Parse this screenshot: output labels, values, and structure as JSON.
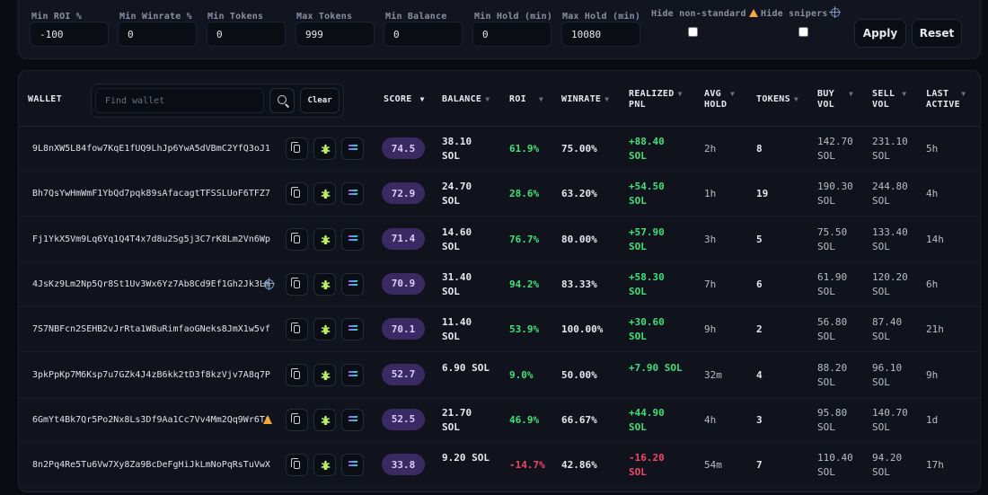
{
  "filters": {
    "min_roi": {
      "label": "Min ROI %",
      "value": "-100"
    },
    "min_winrate": {
      "label": "Min Winrate %",
      "value": "0"
    },
    "min_tokens": {
      "label": "Min Tokens",
      "value": "0"
    },
    "max_tokens": {
      "label": "Max Tokens",
      "value": "999"
    },
    "min_balance": {
      "label": "Min Balance",
      "value": "0"
    },
    "min_hold": {
      "label": "Min Hold (min)",
      "value": "0"
    },
    "max_hold": {
      "label": "Max Hold (min)",
      "value": "10080"
    },
    "hide_nonstandard": {
      "label": "Hide non-standard",
      "icon": "warning-icon",
      "checked": false
    },
    "hide_snipers": {
      "label": "Hide snipers",
      "icon": "crosshair-icon",
      "checked": false
    },
    "apply_label": "Apply",
    "reset_label": "Reset"
  },
  "table": {
    "headers": {
      "wallet": "WALLET",
      "score": "SCORE",
      "balance": "BALANCE",
      "roi": "ROI",
      "winrate": "WINRATE",
      "realized_pnl_1": "REALIZED",
      "realized_pnl_2": "PNL",
      "avg_hold_1": "AVG",
      "avg_hold_2": "HOLD",
      "tokens": "TOKENS",
      "buy_vol_1": "BUY",
      "buy_vol_2": "VOL",
      "sell_vol_1": "SELL",
      "sell_vol_2": "VOL",
      "last_active_1": "LAST",
      "last_active_2": "ACTIVE",
      "score_sort": "▼"
    },
    "search": {
      "placeholder": "Find wallet",
      "clear_label": "Clear"
    },
    "rows": [
      {
        "wallet": "9L8nXW5L84fow7KqE1fUQ9LhJp6YwA5dVBmC2YfQ3oJ1",
        "flag": "",
        "score": "74.5",
        "balance_1": "38.10",
        "balance_2": "SOL",
        "roi": "61.9%",
        "roi_sign": "pos",
        "winrate": "75.00%",
        "pnl_1": "+88.40",
        "pnl_2": "SOL",
        "pnl_sign": "pos",
        "avg_hold": "2h",
        "tokens": "8",
        "buy_1": "142.70",
        "buy_2": "SOL",
        "sell_1": "231.10",
        "sell_2": "SOL",
        "last_active": "5h"
      },
      {
        "wallet": "Bh7QsYwHmWmF1YbQd7pqk89sAfacagtTFSSLUoF6TFZ7",
        "flag": "",
        "score": "72.9",
        "balance_1": "24.70",
        "balance_2": "SOL",
        "roi": "28.6%",
        "roi_sign": "pos",
        "winrate": "63.20%",
        "pnl_1": "+54.50",
        "pnl_2": "SOL",
        "pnl_sign": "pos",
        "avg_hold": "1h",
        "tokens": "19",
        "buy_1": "190.30",
        "buy_2": "SOL",
        "sell_1": "244.80",
        "sell_2": "SOL",
        "last_active": "4h"
      },
      {
        "wallet": "Fj1YkX5Vm9Lq6Yq1Q4T4x7d8u2Sg5j3C7rK8Lm2Vn6Wp",
        "flag": "",
        "score": "71.4",
        "balance_1": "14.60",
        "balance_2": "SOL",
        "roi": "76.7%",
        "roi_sign": "pos",
        "winrate": "80.00%",
        "pnl_1": "+57.90",
        "pnl_2": "SOL",
        "pnl_sign": "pos",
        "avg_hold": "3h",
        "tokens": "5",
        "buy_1": "75.50",
        "buy_2": "SOL",
        "sell_1": "133.40",
        "sell_2": "SOL",
        "last_active": "14h"
      },
      {
        "wallet": "4JsKz9Lm2Np5Qr8St1Uv3Wx6Yz7Ab8Cd9Ef1Gh2Jk3Lm",
        "flag": "sniper",
        "score": "70.9",
        "balance_1": "31.40",
        "balance_2": "SOL",
        "roi": "94.2%",
        "roi_sign": "pos",
        "winrate": "83.33%",
        "pnl_1": "+58.30",
        "pnl_2": "SOL",
        "pnl_sign": "pos",
        "avg_hold": "7h",
        "tokens": "6",
        "buy_1": "61.90",
        "buy_2": "SOL",
        "sell_1": "120.20",
        "sell_2": "SOL",
        "last_active": "6h"
      },
      {
        "wallet": "7S7NBFcn2SEHB2vJrRta1W8uRimfaoGNeks8JmX1w5vf",
        "flag": "",
        "score": "70.1",
        "balance_1": "11.40",
        "balance_2": "SOL",
        "roi": "53.9%",
        "roi_sign": "pos",
        "winrate": "100.00%",
        "pnl_1": "+30.60",
        "pnl_2": "SOL",
        "pnl_sign": "pos",
        "avg_hold": "9h",
        "tokens": "2",
        "buy_1": "56.80",
        "buy_2": "SOL",
        "sell_1": "87.40",
        "sell_2": "SOL",
        "last_active": "21h"
      },
      {
        "wallet": "3pkPpKp7M6Ksp7u7GZk4J4zB6kk2tD3f8kzVjv7A8q7P",
        "flag": "",
        "score": "52.7",
        "balance_1": "6.90 SOL",
        "balance_2": "",
        "roi": "9.0%",
        "roi_sign": "pos",
        "winrate": "50.00%",
        "pnl_1": "+7.90 SOL",
        "pnl_2": "",
        "pnl_sign": "pos",
        "avg_hold": "32m",
        "tokens": "4",
        "buy_1": "88.20",
        "buy_2": "SOL",
        "sell_1": "96.10",
        "sell_2": "SOL",
        "last_active": "9h"
      },
      {
        "wallet": "6GmYt4Bk7Qr5Po2Nx8Ls3Df9Aa1Cc7Vv4Mm2Qq9Wr6Tz",
        "flag": "warning",
        "score": "52.5",
        "balance_1": "21.70",
        "balance_2": "SOL",
        "roi": "46.9%",
        "roi_sign": "pos",
        "winrate": "66.67%",
        "pnl_1": "+44.90",
        "pnl_2": "SOL",
        "pnl_sign": "pos",
        "avg_hold": "4h",
        "tokens": "3",
        "buy_1": "95.80",
        "buy_2": "SOL",
        "sell_1": "140.70",
        "sell_2": "SOL",
        "last_active": "1d"
      },
      {
        "wallet": "8n2Pq4Re5Tu6Vw7Xy8Za9BcDeFgHiJkLmNoPqRsTuVwX",
        "flag": "",
        "score": "33.8",
        "balance_1": "9.20 SOL",
        "balance_2": "",
        "roi": "-14.7%",
        "roi_sign": "neg",
        "winrate": "42.86%",
        "pnl_1": "-16.20",
        "pnl_2": "SOL",
        "pnl_sign": "neg",
        "avg_hold": "54m",
        "tokens": "7",
        "buy_1": "110.40",
        "buy_2": "SOL",
        "sell_1": "94.20",
        "sell_2": "SOL",
        "last_active": "17h"
      }
    ],
    "row_icons": [
      "copy-icon",
      "bug-icon",
      "solana-icon"
    ]
  },
  "colors": {
    "positive": "#3ee07a",
    "negative": "#f2466a",
    "score_badge": "#3a2a63"
  }
}
